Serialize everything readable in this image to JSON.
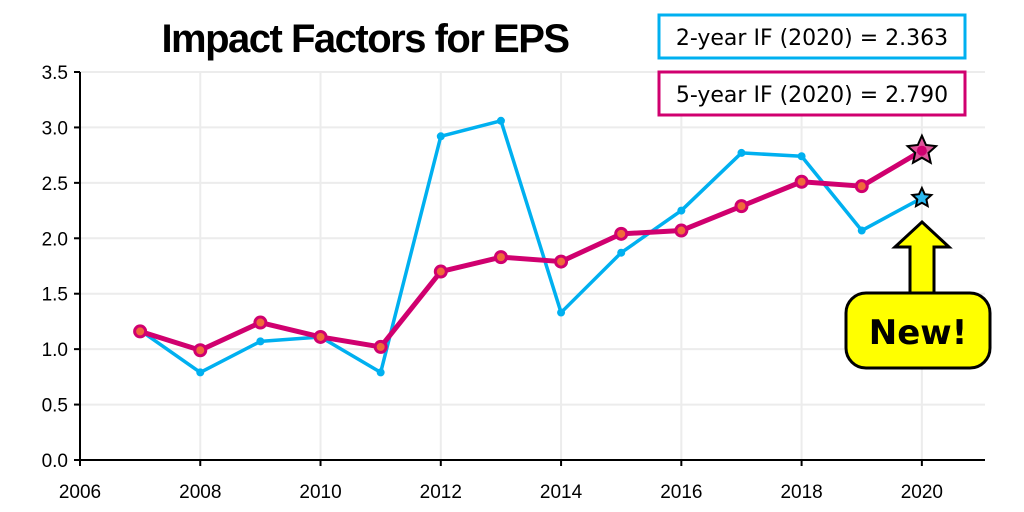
{
  "chart_data": {
    "type": "line",
    "title": "Impact Factors for EPS",
    "xlabel": "",
    "ylabel": "",
    "xlim": [
      2006,
      2021
    ],
    "ylim": [
      0,
      3.5
    ],
    "x_ticks": [
      "2006",
      "2008",
      "2010",
      "2012",
      "2014",
      "2016",
      "2018",
      "2020"
    ],
    "y_ticks": [
      "0.0",
      "0.5",
      "1.0",
      "1.5",
      "2.0",
      "2.5",
      "3.0",
      "3.5"
    ],
    "grid": true,
    "x": [
      2007,
      2008,
      2009,
      2010,
      2011,
      2012,
      2013,
      2014,
      2015,
      2016,
      2017,
      2018,
      2019,
      2020
    ],
    "series": [
      {
        "key": "two_year",
        "color": "#00b0f0",
        "values": [
          1.17,
          0.79,
          1.07,
          1.11,
          0.79,
          2.92,
          3.06,
          1.33,
          1.87,
          2.25,
          2.77,
          2.74,
          2.07,
          2.363
        ]
      },
      {
        "key": "five_year",
        "color": "#d0006f",
        "values": [
          1.16,
          0.99,
          1.24,
          1.11,
          1.02,
          1.7,
          1.83,
          1.79,
          2.04,
          2.07,
          2.29,
          2.51,
          2.47,
          2.79
        ]
      }
    ],
    "legend": {
      "two_year": "2-year IF (2020) = 2.363",
      "five_year": "5-year IF (2020) = 2.790",
      "placement": "top-right"
    },
    "annotation": {
      "text": "New!",
      "color": "#ffff00",
      "points_to": 2020
    }
  }
}
